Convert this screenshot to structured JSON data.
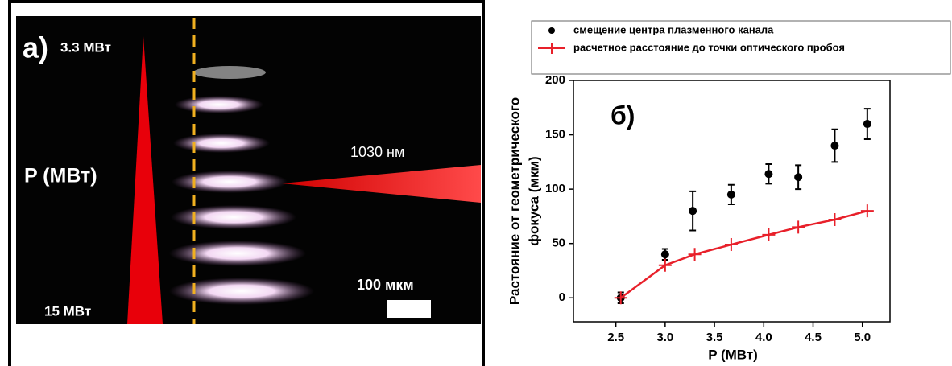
{
  "panel_a": {
    "label": "a)",
    "power_top": "3.3 МВт",
    "power_axis": "P (МВт)",
    "power_bottom": "15 МВт",
    "wavelength": "1030 нм",
    "scale": "100 мкм"
  },
  "chart_data": {
    "type": "scatter",
    "panel_label": "б)",
    "xlabel": "P (МВт)",
    "ylabel": [
      "Растояние от геометрического",
      "фокуса (мкм)"
    ],
    "xlim": [
      2.07,
      5.28
    ],
    "ylim": [
      -22,
      200
    ],
    "xticks": [
      2.5,
      {
        "value": 3,
        "label": "3.0"
      },
      3.5,
      {
        "value": 4,
        "label": "4.0"
      },
      4.5,
      {
        "value": 5,
        "label": "5.0"
      }
    ],
    "yticks": [
      0,
      50,
      100,
      150,
      200
    ],
    "series": [
      {
        "name": "смещение центра плазменного канала",
        "color": "#000000",
        "kind": "points",
        "x": [
          2.55,
          3.0,
          3.28,
          3.67,
          4.05,
          4.35,
          4.72,
          5.05
        ],
        "values": [
          0,
          40,
          80,
          95,
          114,
          111,
          140,
          160
        ],
        "errors": [
          5,
          5,
          18,
          9,
          9,
          11,
          15,
          14
        ]
      },
      {
        "name": "расчетное расстояние до точки оптического пробоя",
        "color": "#e8202a",
        "kind": "line",
        "x": [
          2.55,
          3.0,
          3.3,
          3.67,
          4.05,
          4.35,
          4.72,
          5.05
        ],
        "values": [
          0,
          30,
          40,
          49,
          58,
          65,
          72,
          80
        ]
      }
    ]
  }
}
